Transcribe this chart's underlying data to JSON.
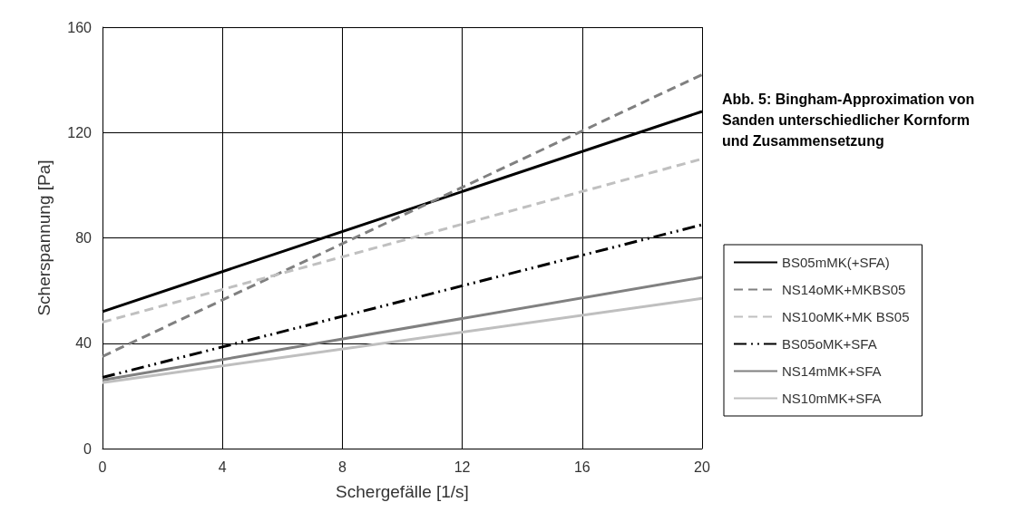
{
  "chart_data": {
    "type": "line",
    "title": "Abb. 5: Bingham-Approximation von Sanden unterschiedlicher Kornform und Zusammensetzung",
    "xlabel": "Schergefälle [1/s]",
    "ylabel": "Scherspannung [Pa]",
    "x": [
      0,
      20
    ],
    "xlim": [
      0,
      20
    ],
    "xticks": [
      0,
      4,
      8,
      12,
      16,
      20
    ],
    "ylim": [
      0,
      160
    ],
    "yticks": [
      0,
      40,
      80,
      120,
      160
    ],
    "grid": true,
    "legend": "right",
    "marker": "none",
    "series": [
      {
        "name": "BS05mMK(+SFA)",
        "color": "#000000",
        "line_style": "solid",
        "values": [
          52,
          128
        ]
      },
      {
        "name": "NS14oMK+MKBS05",
        "color": "#808080",
        "line_style": "dashed",
        "values": [
          35,
          142
        ]
      },
      {
        "name": "NS10oMK+MK BS05",
        "color": "#c0c0c0",
        "line_style": "dashed",
        "values": [
          48,
          110
        ]
      },
      {
        "name": "BS05oMK+SFA",
        "color": "#000000",
        "line_style": "dashdotdot",
        "values": [
          27,
          85
        ]
      },
      {
        "name": "NS14mMK+SFA",
        "color": "#808080",
        "line_style": "solid",
        "values": [
          26,
          65
        ]
      },
      {
        "name": "NS10mMK+SFA",
        "color": "#bfbfbf",
        "line_style": "solid",
        "values": [
          25,
          57
        ]
      }
    ]
  }
}
